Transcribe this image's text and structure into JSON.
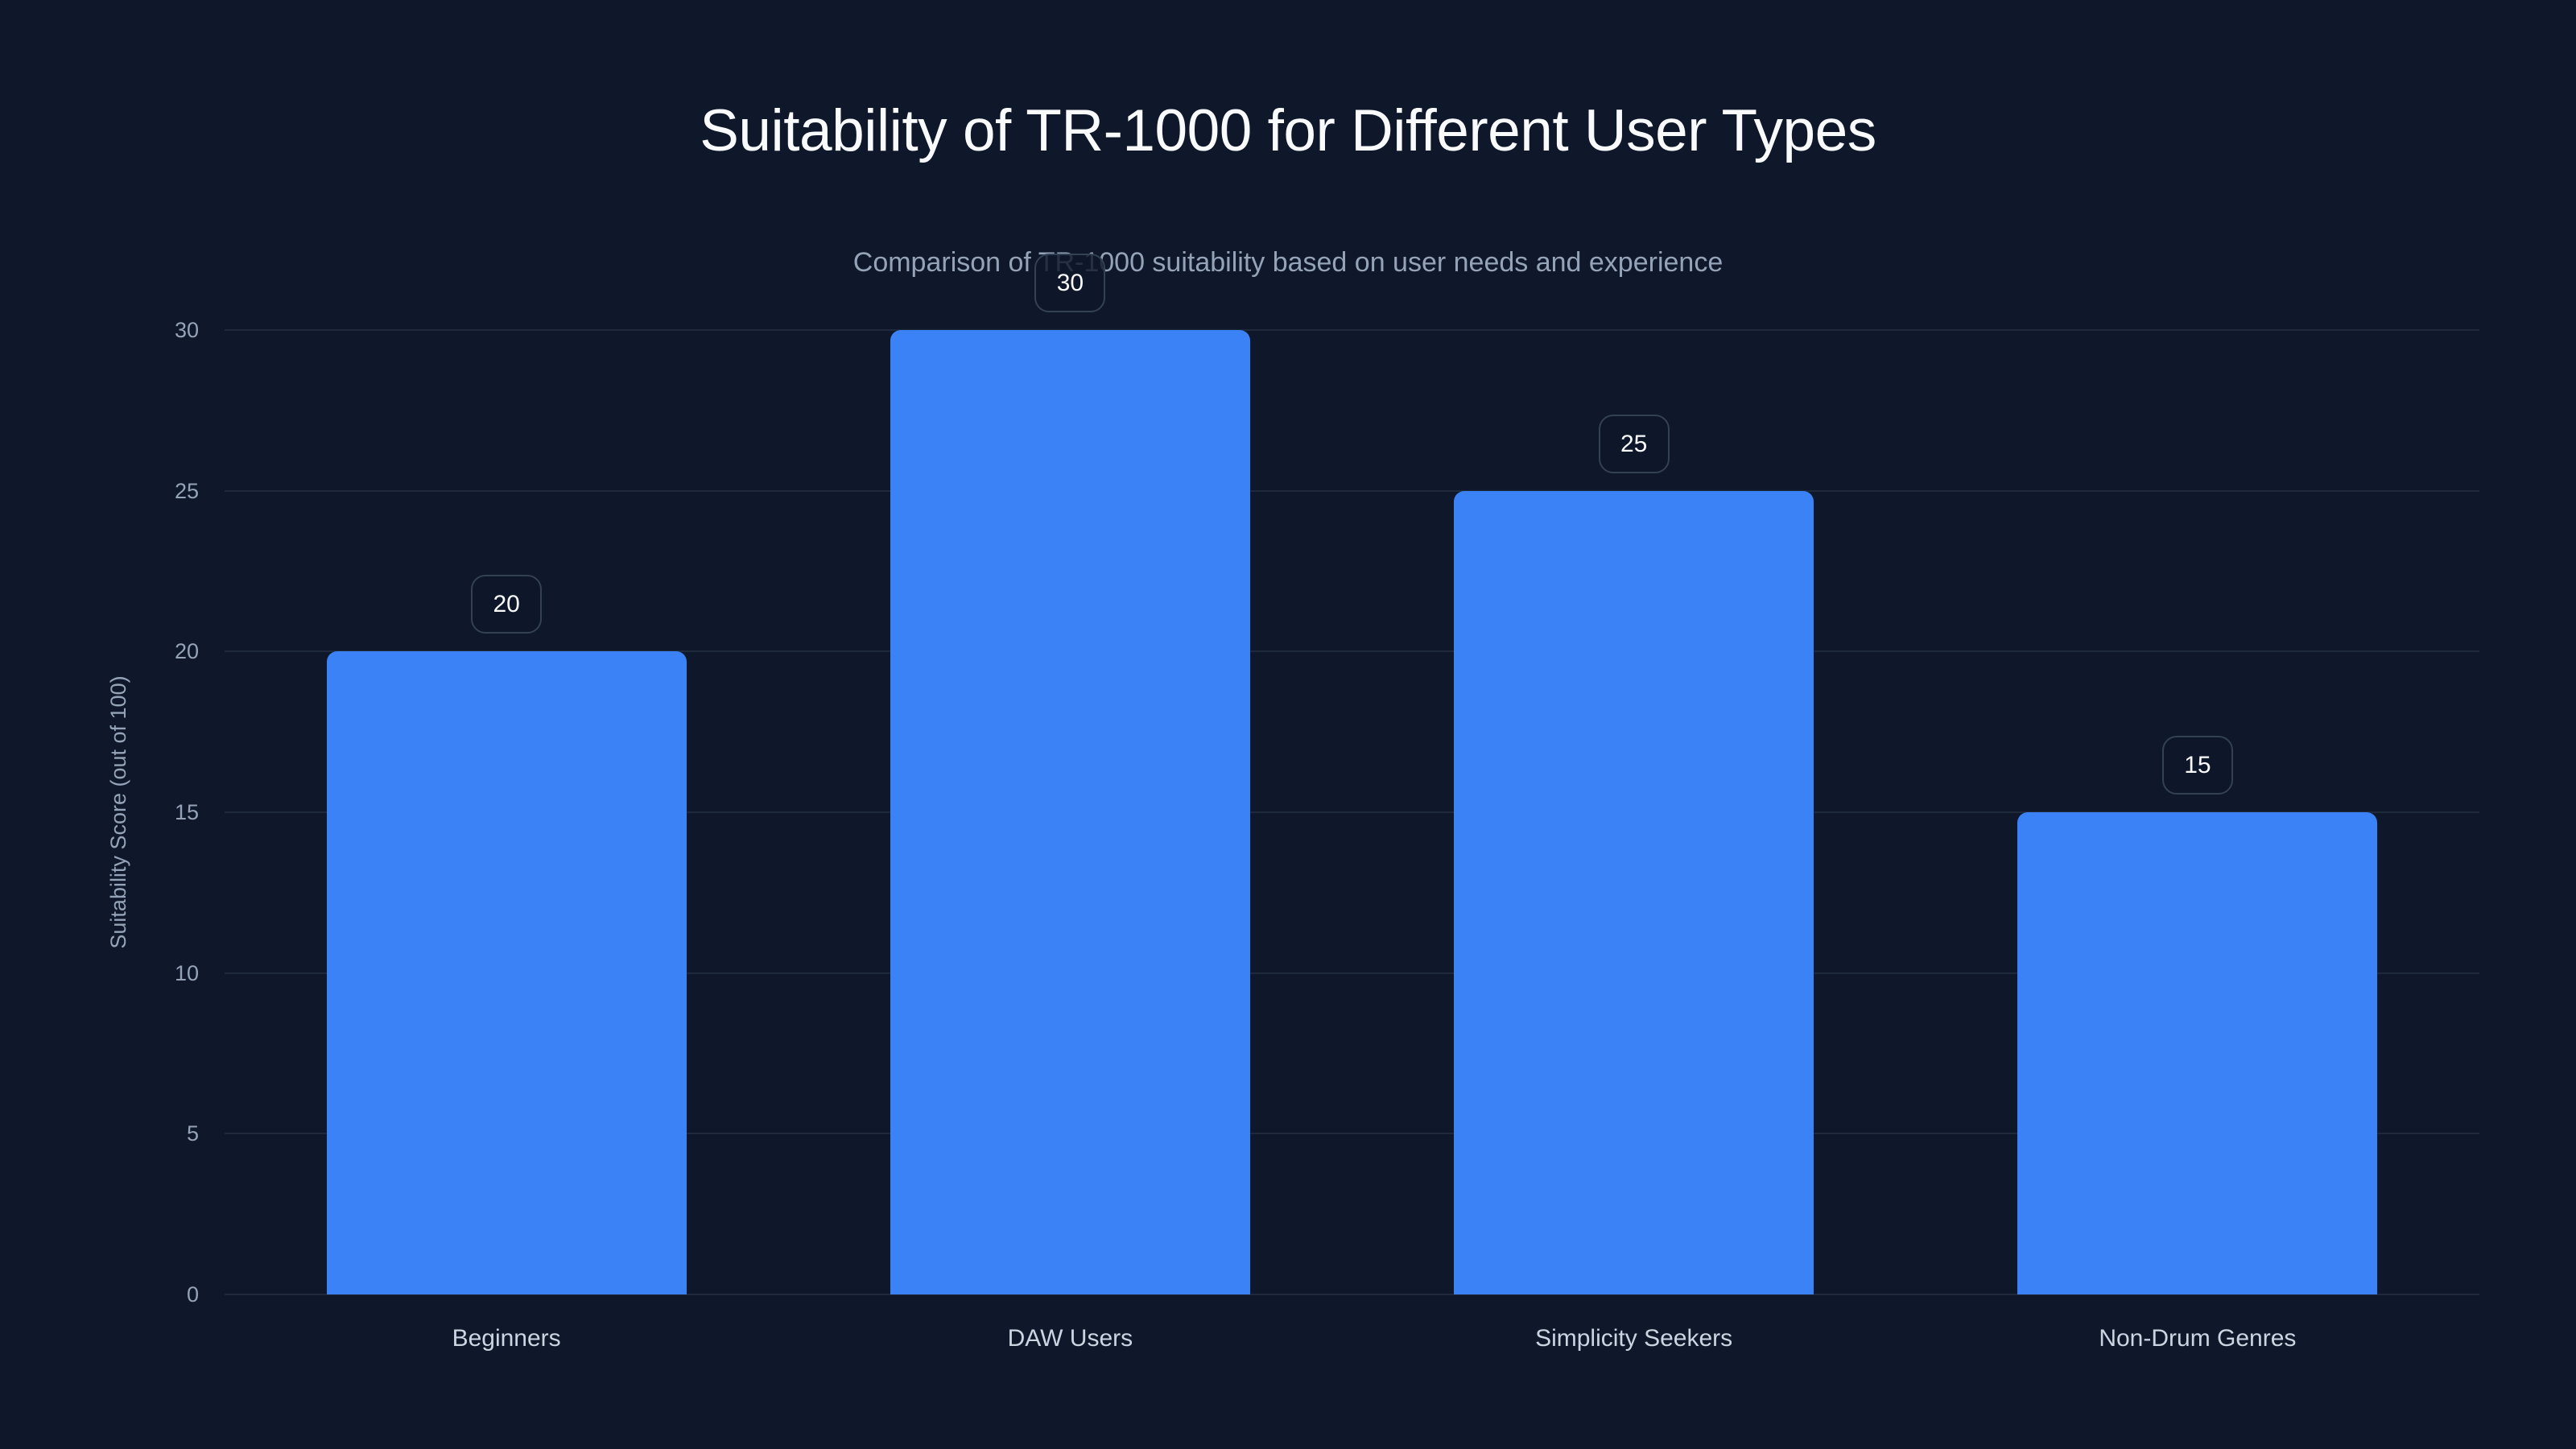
{
  "chart_data": {
    "type": "bar",
    "title": "Suitability of TR-1000 for Different User Types",
    "subtitle": "Comparison of TR-1000 suitability based on user needs and experience",
    "xlabel": "",
    "ylabel": "Suitability Score (out of 100)",
    "categories": [
      "Beginners",
      "DAW Users",
      "Simplicity Seekers",
      "Non-Drum Genres"
    ],
    "values": [
      20,
      30,
      25,
      15
    ],
    "ylim": [
      0,
      30
    ],
    "yticks": [
      0,
      5,
      10,
      15,
      20,
      25,
      30
    ],
    "grid": true,
    "legend": null,
    "data_labels": true,
    "bar_color": "#3B82F6"
  },
  "colors": {
    "background": "#0F172A",
    "bar": "#3B82F6",
    "gridline": "#1E293B",
    "title": "#F8FAFC",
    "subtitle": "#94A3B8",
    "tick_label": "#94A3B8",
    "category_label": "#CBD5E1",
    "pill_border": "#334155"
  },
  "labels": {
    "title": "Suitability of TR-1000 for Different User Types",
    "subtitle": "Comparison of TR-1000 suitability based on user needs and experience",
    "y_axis_title": "Suitability Score (out of 100)",
    "y_ticks": [
      "0",
      "5",
      "10",
      "15",
      "20",
      "25",
      "30"
    ],
    "categories": [
      "Beginners",
      "DAW Users",
      "Simplicity Seekers",
      "Non-Drum Genres"
    ],
    "values": [
      "20",
      "30",
      "25",
      "15"
    ]
  }
}
